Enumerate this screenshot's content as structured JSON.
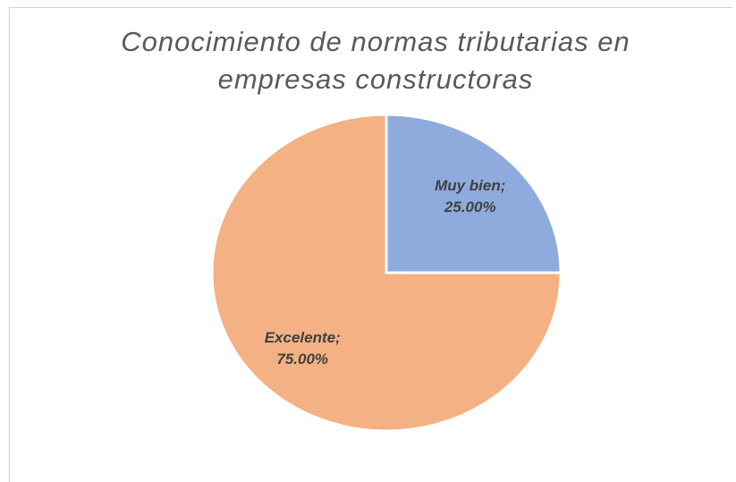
{
  "chart_data": {
    "type": "pie",
    "title": "Conocimiento de normas tributarias en empresas constructoras",
    "values": [
      25,
      75
    ],
    "value_labels": [
      "Muy bien; 25.00%",
      "Excelente; 75.00%"
    ],
    "colors": [
      "#8faadc",
      "#f4b183"
    ]
  }
}
